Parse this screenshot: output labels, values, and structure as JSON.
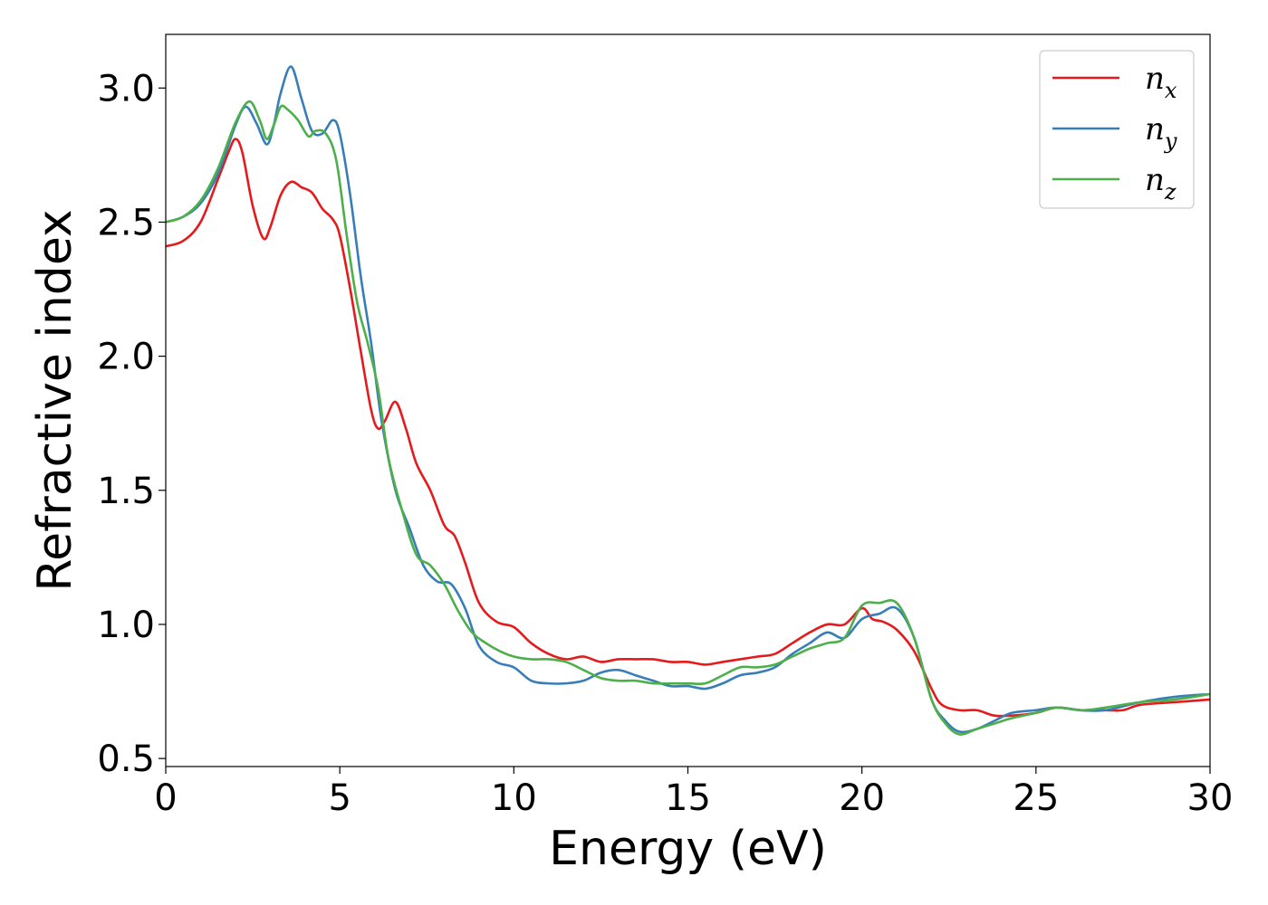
{
  "chart_data": {
    "type": "line",
    "xlabel": "Energy (eV)",
    "ylabel": "Refractive index",
    "xlim": [
      0,
      30
    ],
    "ylim": [
      0.47,
      3.2
    ],
    "xticks": [
      0,
      5,
      10,
      15,
      20,
      25,
      30
    ],
    "yticks": [
      0.5,
      1.0,
      1.5,
      2.0,
      2.5,
      3.0
    ],
    "xtick_labels": [
      "0",
      "5",
      "10",
      "15",
      "20",
      "25",
      "30"
    ],
    "ytick_labels": [
      "0.5",
      "1.0",
      "1.5",
      "2.0",
      "2.5",
      "3.0"
    ],
    "grid": false,
    "legend_position": "top-right",
    "series": [
      {
        "name": "n_x",
        "label_base": "n",
        "label_sub": "x",
        "color": "#e41a1c",
        "x": [
          0,
          0.5,
          1.0,
          1.5,
          1.8,
          2.0,
          2.2,
          2.5,
          2.8,
          3.0,
          3.3,
          3.6,
          3.9,
          4.2,
          4.5,
          4.8,
          5.0,
          5.3,
          5.6,
          5.9,
          6.1,
          6.3,
          6.6,
          6.9,
          7.2,
          7.6,
          8.0,
          8.3,
          8.6,
          9.0,
          9.5,
          10.0,
          10.5,
          11.0,
          11.5,
          12.0,
          12.5,
          13.0,
          13.5,
          14.0,
          14.5,
          15.0,
          15.5,
          16.0,
          16.5,
          17.0,
          17.5,
          18.0,
          18.5,
          19.0,
          19.5,
          20.0,
          20.3,
          20.6,
          21.0,
          21.5,
          22.0,
          22.3,
          22.8,
          23.3,
          23.8,
          24.3,
          25.0,
          25.6,
          26.3,
          27.0,
          27.5,
          28.0,
          29.0,
          30.0
        ],
        "y": [
          2.41,
          2.43,
          2.5,
          2.66,
          2.76,
          2.81,
          2.76,
          2.56,
          2.44,
          2.48,
          2.6,
          2.65,
          2.63,
          2.61,
          2.55,
          2.51,
          2.45,
          2.25,
          2.02,
          1.8,
          1.73,
          1.76,
          1.83,
          1.73,
          1.6,
          1.5,
          1.37,
          1.33,
          1.23,
          1.08,
          1.01,
          0.99,
          0.93,
          0.89,
          0.87,
          0.88,
          0.86,
          0.87,
          0.87,
          0.87,
          0.86,
          0.86,
          0.85,
          0.86,
          0.87,
          0.88,
          0.89,
          0.93,
          0.97,
          1.0,
          1.0,
          1.06,
          1.02,
          1.01,
          0.98,
          0.9,
          0.76,
          0.7,
          0.68,
          0.68,
          0.66,
          0.66,
          0.67,
          0.69,
          0.68,
          0.68,
          0.68,
          0.7,
          0.71,
          0.72
        ]
      },
      {
        "name": "n_y",
        "label_base": "n",
        "label_sub": "y",
        "color": "#377eb8",
        "x": [
          0,
          0.5,
          1.0,
          1.5,
          2.0,
          2.3,
          2.6,
          2.9,
          3.1,
          3.3,
          3.6,
          3.9,
          4.2,
          4.5,
          4.8,
          5.0,
          5.3,
          5.6,
          5.9,
          6.2,
          6.6,
          7.0,
          7.4,
          7.8,
          8.2,
          8.6,
          9.0,
          9.5,
          10.0,
          10.5,
          11.0,
          11.5,
          12.0,
          12.5,
          13.0,
          13.5,
          14.0,
          14.5,
          15.0,
          15.5,
          16.0,
          16.5,
          17.0,
          17.5,
          18.0,
          18.5,
          19.0,
          19.5,
          20.0,
          20.5,
          21.0,
          21.5,
          22.0,
          22.4,
          22.8,
          23.3,
          23.8,
          24.3,
          25.0,
          25.6,
          26.3,
          27.0,
          28.0,
          29.0,
          30.0
        ],
        "y": [
          2.5,
          2.52,
          2.57,
          2.68,
          2.86,
          2.93,
          2.87,
          2.79,
          2.86,
          2.98,
          3.08,
          2.96,
          2.84,
          2.83,
          2.88,
          2.83,
          2.6,
          2.3,
          2.05,
          1.76,
          1.5,
          1.36,
          1.22,
          1.16,
          1.15,
          1.06,
          0.92,
          0.86,
          0.84,
          0.79,
          0.78,
          0.78,
          0.79,
          0.82,
          0.83,
          0.81,
          0.79,
          0.77,
          0.77,
          0.76,
          0.78,
          0.81,
          0.82,
          0.84,
          0.89,
          0.93,
          0.97,
          0.95,
          1.02,
          1.04,
          1.06,
          0.95,
          0.72,
          0.64,
          0.6,
          0.61,
          0.64,
          0.67,
          0.68,
          0.69,
          0.68,
          0.68,
          0.71,
          0.73,
          0.74
        ]
      },
      {
        "name": "n_z",
        "label_base": "n",
        "label_sub": "z",
        "color": "#4daf4a",
        "x": [
          0,
          0.5,
          1.0,
          1.5,
          2.0,
          2.4,
          2.7,
          2.9,
          3.1,
          3.3,
          3.5,
          3.8,
          4.1,
          4.3,
          4.6,
          4.9,
          5.2,
          5.5,
          5.8,
          6.1,
          6.4,
          6.8,
          7.2,
          7.6,
          8.0,
          8.4,
          8.8,
          9.2,
          9.6,
          10.0,
          10.5,
          11.0,
          11.5,
          12.0,
          12.5,
          13.0,
          13.5,
          14.0,
          14.5,
          15.0,
          15.5,
          16.0,
          16.5,
          17.0,
          17.5,
          18.0,
          18.5,
          19.0,
          19.5,
          20.0,
          20.5,
          21.0,
          21.5,
          22.0,
          22.4,
          22.8,
          23.3,
          23.8,
          24.3,
          25.0,
          25.6,
          26.3,
          27.0,
          28.0,
          29.0,
          30.0
        ],
        "y": [
          2.5,
          2.52,
          2.58,
          2.7,
          2.87,
          2.95,
          2.88,
          2.81,
          2.86,
          2.93,
          2.92,
          2.88,
          2.82,
          2.84,
          2.83,
          2.73,
          2.45,
          2.2,
          2.05,
          1.88,
          1.62,
          1.42,
          1.26,
          1.22,
          1.15,
          1.05,
          0.97,
          0.93,
          0.9,
          0.88,
          0.87,
          0.87,
          0.86,
          0.83,
          0.8,
          0.79,
          0.79,
          0.78,
          0.78,
          0.78,
          0.78,
          0.81,
          0.84,
          0.84,
          0.85,
          0.88,
          0.91,
          0.93,
          0.95,
          1.07,
          1.08,
          1.08,
          0.95,
          0.72,
          0.63,
          0.59,
          0.61,
          0.63,
          0.65,
          0.67,
          0.69,
          0.68,
          0.69,
          0.71,
          0.72,
          0.74
        ]
      }
    ]
  }
}
